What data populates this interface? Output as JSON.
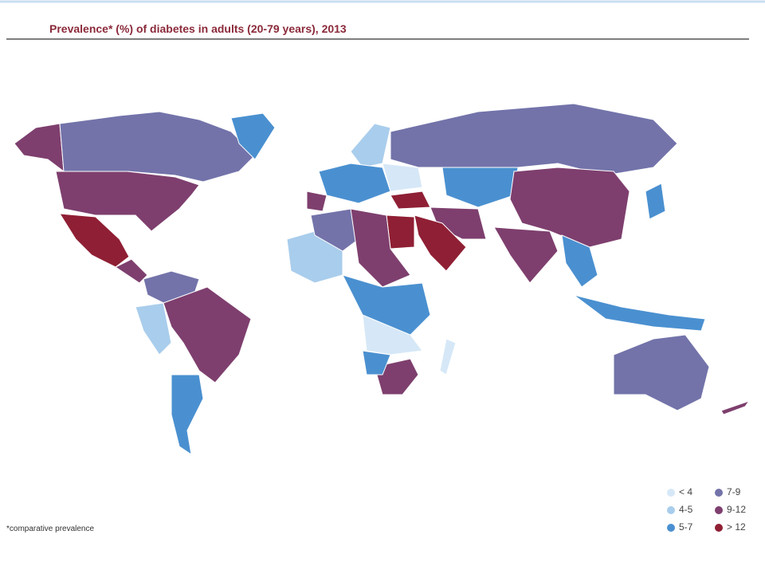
{
  "header": {
    "title": "Prevalence* (%) of diabetes in adults (20-79 years), 2013"
  },
  "legend": {
    "items": [
      {
        "label": "< 4",
        "color": "#d6e8f7"
      },
      {
        "label": "4-5",
        "color": "#a9cdec"
      },
      {
        "label": "5-7",
        "color": "#4a90d0"
      },
      {
        "label": "7-9",
        "color": "#7373aa"
      },
      {
        "label": "9-12",
        "color": "#7e3f6e"
      },
      {
        "label": "> 12",
        "color": "#8f1f34"
      }
    ]
  },
  "footnote": "*comparative prevalence"
}
